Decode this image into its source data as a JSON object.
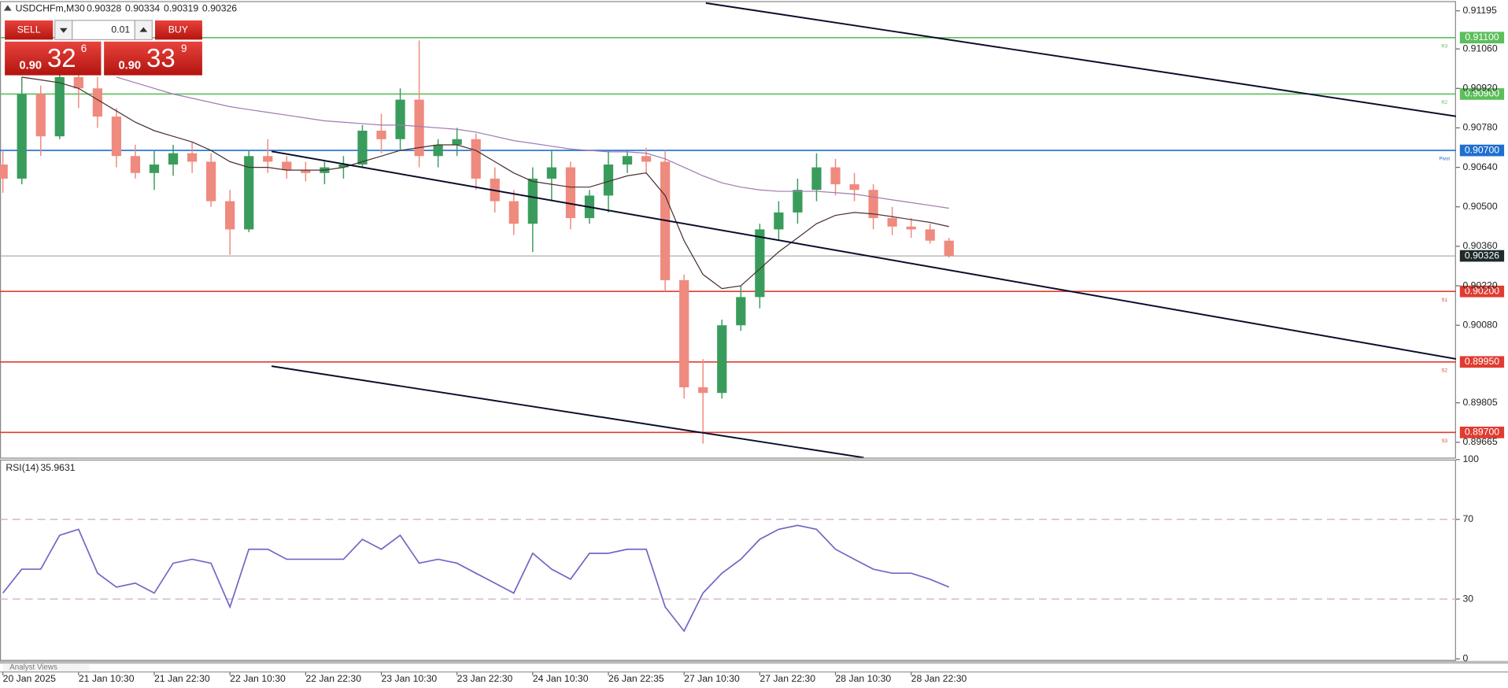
{
  "header": {
    "symbol": "USDCHFm,M30",
    "open": 0.90328,
    "high": 0.90334,
    "low": 0.90319,
    "close": 0.90326
  },
  "trade_panel": {
    "sell": "SELL",
    "buy": "BUY",
    "lot": "0.01",
    "sell_price": {
      "big": "0.90",
      "main": "32",
      "sup": "6"
    },
    "buy_price": {
      "big": "0.90",
      "main": "33",
      "sup": "9"
    }
  },
  "footer": {
    "tab": "Analyst Views"
  },
  "chart_data": [
    {
      "type": "candlestick",
      "x": [
        "20 Jan 2025",
        null,
        null,
        null,
        "21 Jan 10:30",
        null,
        null,
        null,
        "21 Jan 22:30",
        null,
        null,
        null,
        "22 Jan 10:30",
        null,
        null,
        null,
        "22 Jan 22:30",
        null,
        null,
        null,
        "23 Jan 10:30",
        null,
        null,
        null,
        "23 Jan 22:30",
        null,
        null,
        null,
        "24 Jan 10:30",
        null,
        null,
        null,
        "26 Jan 22:35",
        null,
        null,
        null,
        "27 Jan 10:30",
        null,
        null,
        null,
        "27 Jan 22:30",
        null,
        null,
        null,
        "28 Jan 10:30",
        null,
        null,
        null,
        "28 Jan 22:30",
        null,
        null
      ],
      "open": [
        0.9065,
        0.906,
        0.909,
        0.9075,
        0.9096,
        0.9092,
        0.9082,
        0.9068,
        0.9062,
        0.9065,
        0.9069,
        0.9066,
        0.9052,
        0.9042,
        0.9068,
        0.9066,
        0.9063,
        0.9062,
        0.9064,
        0.9065,
        0.9077,
        0.9074,
        0.9088,
        0.9068,
        0.9072,
        0.9074,
        0.906,
        0.9052,
        0.9044,
        0.906,
        0.9064,
        0.9046,
        0.9054,
        0.9065,
        0.9068,
        0.9066,
        0.9024,
        0.8986,
        0.8984,
        0.9008,
        0.9018,
        0.9042,
        0.9048,
        0.9056,
        0.9064,
        0.9058,
        0.9056,
        0.9046,
        0.9043,
        0.9042,
        0.9038
      ],
      "high": [
        0.907,
        0.9096,
        0.9093,
        0.91,
        0.91,
        0.9096,
        0.9085,
        0.9072,
        0.907,
        0.9072,
        0.9073,
        0.9069,
        0.9056,
        0.907,
        0.9074,
        0.9068,
        0.9066,
        0.9066,
        0.9068,
        0.9079,
        0.9083,
        0.9092,
        0.9109,
        0.9074,
        0.9078,
        0.9076,
        0.9064,
        0.9056,
        0.9064,
        0.907,
        0.9066,
        0.9056,
        0.907,
        0.907,
        0.9071,
        0.907,
        0.9026,
        0.8996,
        0.901,
        0.9022,
        0.9044,
        0.9052,
        0.906,
        0.9069,
        0.9067,
        0.9062,
        0.9058,
        0.905,
        0.9046,
        0.9044,
        0.9039
      ],
      "low": [
        0.9055,
        0.9058,
        0.9068,
        0.9074,
        0.9085,
        0.9078,
        0.9064,
        0.906,
        0.9056,
        0.9061,
        0.9062,
        0.905,
        0.9033,
        0.9041,
        0.9062,
        0.906,
        0.9059,
        0.9058,
        0.906,
        0.9064,
        0.9069,
        0.907,
        0.9064,
        0.9064,
        0.9068,
        0.9056,
        0.9048,
        0.904,
        0.9034,
        0.9052,
        0.9042,
        0.9044,
        0.9048,
        0.9062,
        0.9062,
        0.902,
        0.8982,
        0.8966,
        0.8982,
        0.9006,
        0.9014,
        0.9038,
        0.9044,
        0.9052,
        0.9054,
        0.9052,
        0.9042,
        0.904,
        0.9039,
        0.9037,
        0.9032
      ],
      "close": [
        0.906,
        0.909,
        0.9075,
        0.9096,
        0.9092,
        0.9082,
        0.9068,
        0.9062,
        0.9065,
        0.9069,
        0.9066,
        0.9052,
        0.9042,
        0.9068,
        0.9066,
        0.9063,
        0.9062,
        0.9064,
        0.9065,
        0.9077,
        0.9074,
        0.9088,
        0.9068,
        0.9072,
        0.9074,
        0.906,
        0.9052,
        0.9044,
        0.906,
        0.9064,
        0.9046,
        0.9054,
        0.9065,
        0.9068,
        0.9066,
        0.9024,
        0.8986,
        0.8984,
        0.9008,
        0.9018,
        0.9042,
        0.9048,
        0.9056,
        0.9064,
        0.9058,
        0.9056,
        0.9046,
        0.9043,
        0.9042,
        0.9038,
        0.90326
      ],
      "up_color": "#3a9c5c",
      "down_color": "#ef8a7e",
      "moving_averages": [
        {
          "color": "#4a3030",
          "values": [
            null,
            0.9096,
            0.9095,
            0.9094,
            0.9092,
            0.9088,
            0.9084,
            0.908,
            0.9077,
            0.9075,
            0.9073,
            0.907,
            0.9066,
            0.9064,
            0.9064,
            0.9063,
            0.9063,
            0.9063,
            0.9064,
            0.9066,
            0.9068,
            0.907,
            0.9071,
            0.9072,
            0.9072,
            0.907,
            0.9066,
            0.9062,
            0.9059,
            0.9058,
            0.9057,
            0.9057,
            0.9059,
            0.9061,
            0.9062,
            0.9054,
            0.9038,
            0.9026,
            0.9021,
            0.9022,
            0.9028,
            0.9034,
            0.9039,
            0.9044,
            0.9047,
            0.9048,
            0.90475,
            0.90465,
            0.90455,
            0.90445,
            0.9043
          ]
        },
        {
          "color": "#a07ab0",
          "values": [
            null,
            null,
            null,
            null,
            null,
            null,
            0.9096,
            0.9094,
            0.9092,
            0.909,
            0.90885,
            0.9087,
            0.90855,
            0.90845,
            0.90835,
            0.90825,
            0.90815,
            0.90805,
            0.908,
            0.90795,
            0.9079,
            0.9079,
            0.90785,
            0.9078,
            0.90775,
            0.90765,
            0.9075,
            0.90735,
            0.90725,
            0.90715,
            0.90705,
            0.907,
            0.90695,
            0.90695,
            0.9069,
            0.9067,
            0.9064,
            0.9061,
            0.90585,
            0.9057,
            0.9056,
            0.90555,
            0.90555,
            0.90555,
            0.9055,
            0.90545,
            0.90535,
            0.90525,
            0.90515,
            0.90505,
            0.90495
          ]
        }
      ],
      "levels": [
        {
          "name": "R3",
          "value": 0.911,
          "label": "0.91100",
          "color": "#5cbf5c"
        },
        {
          "name": "R2",
          "value": 0.909,
          "label": "0.90900",
          "color": "#5cbf5c"
        },
        {
          "name": "Pivot",
          "value": 0.907,
          "label": "0.90700",
          "color": "#1e6fd0"
        },
        {
          "name": "S1",
          "value": 0.902,
          "label": "0.90200",
          "color": "#e03c31"
        },
        {
          "name": "S2",
          "value": 0.8995,
          "label": "0.89950",
          "color": "#e03c31"
        },
        {
          "name": "S3",
          "value": 0.897,
          "label": "0.89700",
          "color": "#e03c31"
        }
      ],
      "current_price": 0.90326,
      "ylim": [
        0.89614,
        0.91226
      ],
      "yticks": [
        0.91195,
        {
          "value": 0.9106,
          "label": "0.91060"
        },
        {
          "value": 0.9092,
          "label": "0.90920"
        },
        {
          "value": 0.9078,
          "label": "0.90780"
        },
        {
          "value": 0.9064,
          "label": "0.90640"
        },
        {
          "value": 0.905,
          "label": "0.90500"
        },
        {
          "value": 0.9036,
          "label": "0.90360"
        },
        {
          "value": 0.9022,
          "label": "0.90220"
        },
        {
          "value": 0.9008,
          "label": "0.90080"
        },
        0.89805,
        0.89665
      ],
      "grid": false
    },
    {
      "type": "line",
      "title": "RSI(14)",
      "current_value": 35.9631,
      "color": "#7466c4",
      "values": [
        33,
        45,
        45,
        62,
        65,
        43,
        36,
        38,
        33,
        48,
        50,
        48,
        26,
        55,
        55,
        50,
        50,
        50,
        50,
        60,
        55,
        62,
        48,
        50,
        48,
        43,
        38,
        33,
        53,
        45,
        40,
        53,
        53,
        55,
        55,
        26,
        14,
        33,
        43,
        50,
        60,
        65,
        67,
        65,
        55,
        50,
        45,
        43,
        43,
        40,
        36
      ],
      "levels": [
        70,
        30
      ],
      "ylim": [
        -1,
        100
      ],
      "yticks": [
        100,
        70,
        30,
        0
      ],
      "grid": false
    }
  ]
}
